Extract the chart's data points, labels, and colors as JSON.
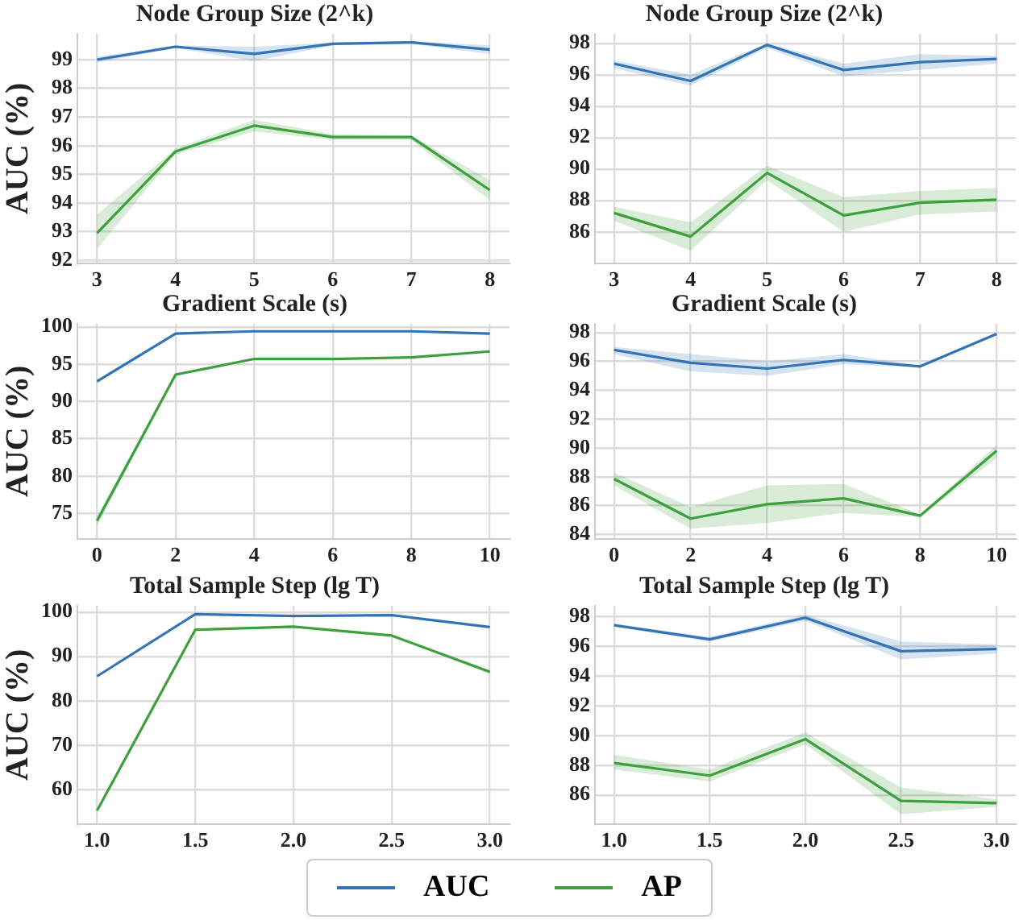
{
  "chart_data": [
    {
      "type": "line",
      "title": "Node Group Size (2^k)",
      "ylabel": "AUC (%)",
      "x": [
        3,
        4,
        5,
        6,
        7,
        8
      ],
      "xlim": [
        2.75,
        8.25
      ],
      "xticks": [
        3,
        4,
        5,
        6,
        7,
        8
      ],
      "ylim": [
        91.9,
        99.9
      ],
      "yticks": [
        92,
        93,
        94,
        95,
        96,
        97,
        98,
        99
      ],
      "grid": true,
      "series": [
        {
          "color": "#3274b5",
          "values": [
            99.0,
            99.45,
            99.2,
            99.55,
            99.6,
            99.35
          ],
          "lower": [
            98.9,
            99.4,
            98.95,
            99.5,
            99.55,
            99.2
          ],
          "upper": [
            99.1,
            99.5,
            99.45,
            99.6,
            99.65,
            99.5
          ]
        },
        {
          "color": "#3ca03c",
          "values": [
            92.95,
            95.8,
            96.7,
            96.3,
            96.3,
            94.45
          ],
          "lower": [
            92.4,
            95.7,
            96.5,
            96.2,
            96.2,
            94.1
          ],
          "upper": [
            93.6,
            95.9,
            96.9,
            96.4,
            96.35,
            94.8
          ]
        }
      ]
    },
    {
      "type": "line",
      "title": "Node Group Size (2^k)",
      "x": [
        3,
        4,
        5,
        6,
        7,
        8
      ],
      "xlim": [
        2.75,
        8.25
      ],
      "xticks": [
        3,
        4,
        5,
        6,
        7,
        8
      ],
      "ylim": [
        84,
        98.6
      ],
      "yticks": [
        86,
        88,
        90,
        92,
        94,
        96,
        98
      ],
      "grid": true,
      "series": [
        {
          "color": "#3274b5",
          "values": [
            96.7,
            95.6,
            97.9,
            96.3,
            96.8,
            97.0
          ],
          "lower": [
            96.4,
            95.3,
            97.7,
            95.9,
            96.3,
            96.7
          ],
          "upper": [
            96.9,
            96.0,
            98.0,
            96.7,
            97.3,
            97.2
          ]
        },
        {
          "color": "#3ca03c",
          "values": [
            87.2,
            85.7,
            89.75,
            87.05,
            87.85,
            88.05
          ],
          "lower": [
            86.7,
            84.8,
            89.3,
            86.0,
            87.1,
            87.3
          ],
          "upper": [
            87.6,
            86.6,
            90.2,
            88.2,
            88.6,
            88.8
          ]
        }
      ]
    },
    {
      "type": "line",
      "title": "Gradient Scale (s)",
      "ylabel": "AUC (%)",
      "x": [
        0,
        2,
        4,
        6,
        8,
        10
      ],
      "xlim": [
        -0.5,
        10.5
      ],
      "xticks": [
        0,
        2,
        4,
        6,
        8,
        10
      ],
      "ylim": [
        71.6,
        100.4
      ],
      "yticks": [
        75,
        80,
        85,
        90,
        95,
        100
      ],
      "grid": true,
      "series": [
        {
          "color": "#3274b5",
          "values": [
            92.7,
            99.1,
            99.4,
            99.4,
            99.4,
            99.1
          ],
          "lower": [
            92.5,
            99.0,
            99.3,
            99.3,
            99.3,
            99.0
          ],
          "upper": [
            92.9,
            99.2,
            99.5,
            99.5,
            99.5,
            99.2
          ]
        },
        {
          "color": "#3ca03c",
          "values": [
            74.0,
            93.6,
            95.7,
            95.7,
            95.9,
            96.7
          ],
          "lower": [
            73.3,
            93.4,
            95.6,
            95.6,
            95.8,
            96.6
          ],
          "upper": [
            74.7,
            93.8,
            95.8,
            95.8,
            96.0,
            96.8
          ]
        }
      ]
    },
    {
      "type": "line",
      "title": "Gradient Scale (s)",
      "x": [
        0,
        2,
        4,
        6,
        8,
        10
      ],
      "xlim": [
        -0.5,
        10.5
      ],
      "xticks": [
        0,
        2,
        4,
        6,
        8,
        10
      ],
      "ylim": [
        83.7,
        98.6
      ],
      "yticks": [
        84,
        86,
        88,
        90,
        92,
        94,
        96,
        98
      ],
      "grid": true,
      "series": [
        {
          "color": "#3274b5",
          "values": [
            96.8,
            95.9,
            95.5,
            96.1,
            95.65,
            97.9
          ],
          "lower": [
            96.5,
            95.3,
            95.0,
            95.8,
            95.6,
            97.8
          ],
          "upper": [
            97.0,
            96.5,
            96.0,
            96.5,
            95.7,
            98.0
          ]
        },
        {
          "color": "#3ca03c",
          "values": [
            87.85,
            85.1,
            86.1,
            86.5,
            85.3,
            89.8
          ],
          "lower": [
            87.4,
            84.4,
            84.8,
            85.5,
            85.2,
            89.3
          ],
          "upper": [
            88.3,
            85.9,
            87.4,
            87.5,
            85.4,
            90.2
          ]
        }
      ]
    },
    {
      "type": "line",
      "title": "Total Sample Step (lg T)",
      "ylabel": "AUC (%)",
      "x": [
        1.0,
        1.5,
        2.0,
        2.5,
        3.0
      ],
      "xlim": [
        0.9,
        3.1
      ],
      "xticks": [
        {
          "value": 1,
          "label": "1.0"
        },
        1.5,
        {
          "value": 2,
          "label": "2.0"
        },
        2.5,
        {
          "value": 3,
          "label": "3.0"
        }
      ],
      "ylim": [
        52.2,
        101.4
      ],
      "yticks": [
        60,
        70,
        80,
        90,
        100
      ],
      "grid": true,
      "series": [
        {
          "color": "#3274b5",
          "values": [
            85.5,
            99.5,
            99.1,
            99.3,
            96.6
          ],
          "lower": [
            85.3,
            99.3,
            98.9,
            99.1,
            96.4
          ],
          "upper": [
            85.7,
            99.7,
            99.3,
            99.5,
            96.8
          ]
        },
        {
          "color": "#3ca03c",
          "values": [
            55.2,
            96.0,
            96.7,
            94.7,
            86.5
          ],
          "lower": [
            54.9,
            95.8,
            96.5,
            94.5,
            86.1
          ],
          "upper": [
            55.5,
            96.2,
            96.9,
            94.9,
            86.9
          ]
        }
      ]
    },
    {
      "type": "line",
      "title": "Total Sample Step (lg T)",
      "x": [
        1.0,
        1.5,
        2.0,
        2.5,
        3.0
      ],
      "xlim": [
        0.9,
        3.1
      ],
      "xticks": [
        {
          "value": 1,
          "label": "1.0"
        },
        1.5,
        {
          "value": 2,
          "label": "2.0"
        },
        2.5,
        {
          "value": 3,
          "label": "3.0"
        }
      ],
      "ylim": [
        84.05,
        98.7
      ],
      "yticks": [
        86,
        88,
        90,
        92,
        94,
        96,
        98
      ],
      "grid": true,
      "legend": "bottom",
      "series": [
        {
          "name": "AUC",
          "color": "#3274b5",
          "values": [
            97.4,
            96.45,
            97.9,
            95.65,
            95.8
          ],
          "lower": [
            97.3,
            96.3,
            97.7,
            95.1,
            95.5
          ],
          "upper": [
            97.5,
            96.6,
            98.1,
            96.3,
            96.1
          ]
        },
        {
          "name": "AP",
          "color": "#3ca03c",
          "values": [
            88.15,
            87.3,
            89.75,
            85.6,
            85.45
          ],
          "lower": [
            87.7,
            86.9,
            89.4,
            84.7,
            85.2
          ],
          "upper": [
            88.7,
            87.7,
            90.2,
            86.5,
            85.7
          ]
        }
      ]
    }
  ]
}
